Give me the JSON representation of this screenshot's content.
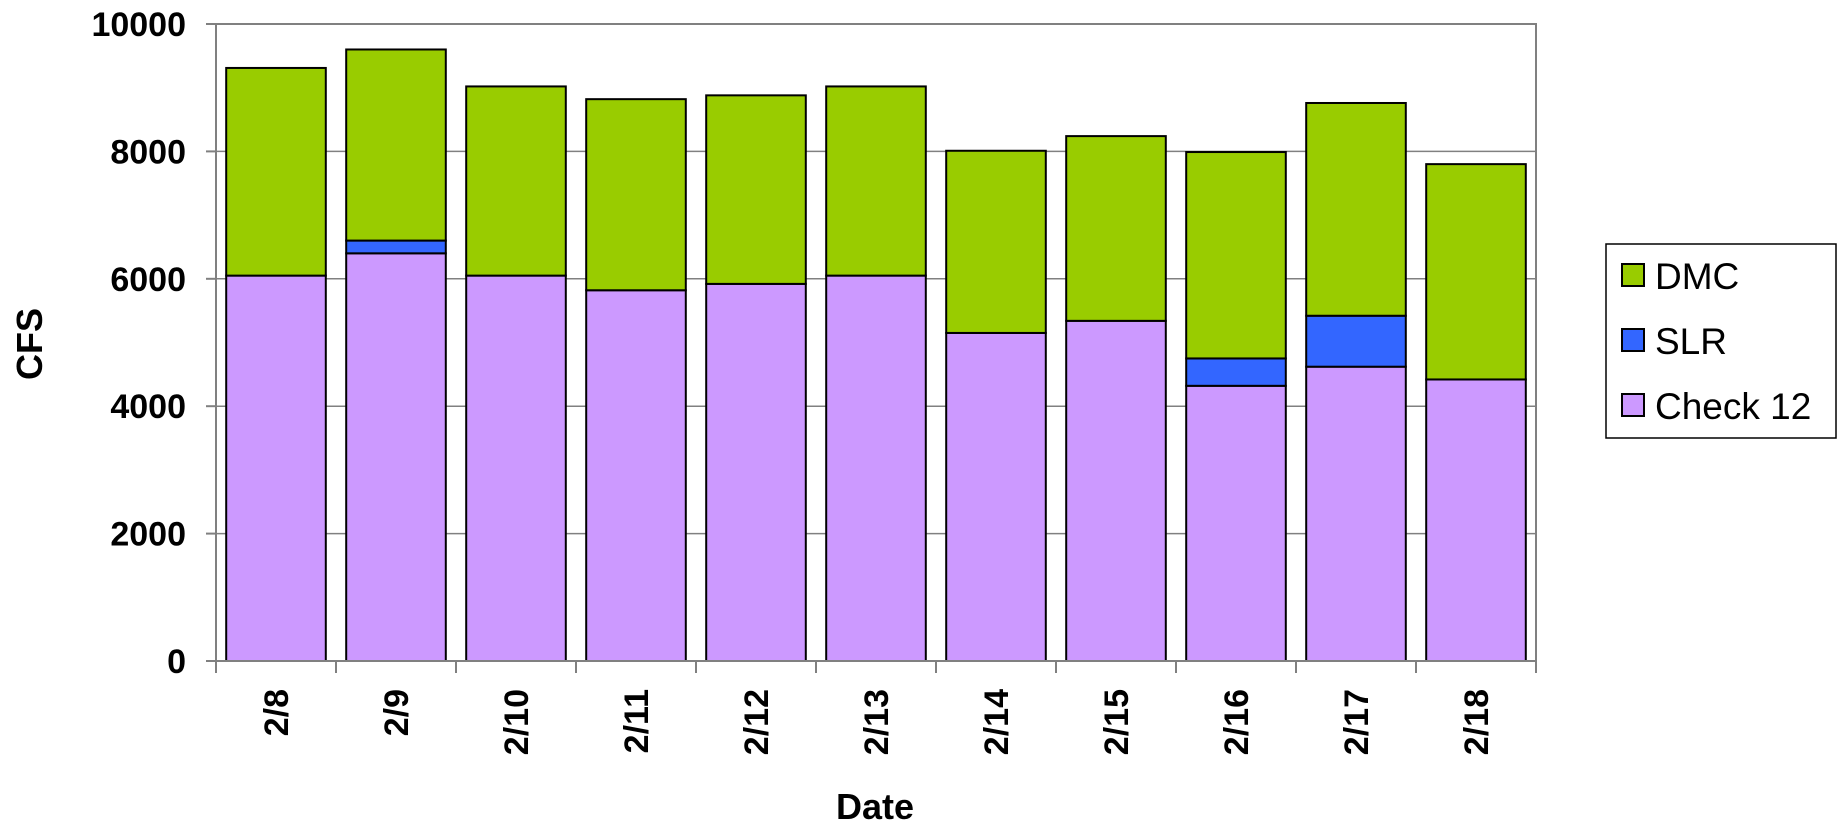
{
  "chart_data": {
    "type": "bar",
    "stacked": true,
    "title": "",
    "xlabel": "Date",
    "ylabel": "CFS",
    "ylim": [
      0,
      10000
    ],
    "yticks": [
      "0",
      "2000",
      "4000",
      "6000",
      "8000",
      "10000"
    ],
    "categories": [
      "2/8",
      "2/9",
      "2/10",
      "2/11",
      "2/12",
      "2/13",
      "2/14",
      "2/15",
      "2/16",
      "2/17",
      "2/18"
    ],
    "series": [
      {
        "name": "Check 12",
        "color": "#CC99FF",
        "values": [
          6050,
          6400,
          6050,
          5820,
          5920,
          6050,
          5150,
          5340,
          4320,
          4620,
          4420
        ]
      },
      {
        "name": "SLR",
        "color": "#3366FF",
        "values": [
          0,
          200,
          0,
          0,
          0,
          0,
          0,
          0,
          430,
          800,
          0
        ]
      },
      {
        "name": "DMC",
        "color": "#99CC00",
        "values": [
          3260,
          3000,
          2970,
          3000,
          2960,
          2970,
          2860,
          2900,
          3240,
          3340,
          3380
        ]
      }
    ],
    "legend_order": [
      "DMC",
      "SLR",
      "Check 12"
    ],
    "legend_position": "right",
    "grid": true
  }
}
